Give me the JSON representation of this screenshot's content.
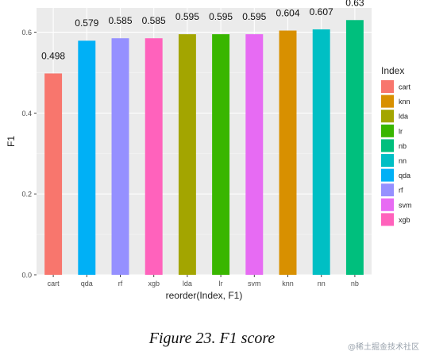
{
  "caption": "Figure 23. F1 score",
  "watermark": "@稀土掘金技术社区",
  "chart_data": {
    "type": "bar",
    "title": "",
    "xlabel": "reorder(Index, F1)",
    "ylabel": "F1",
    "ylim": [
      0,
      0.66
    ],
    "yticks": [
      0.0,
      0.2,
      0.4,
      0.6
    ],
    "ytick_labels": [
      "0.0",
      "0.2",
      "0.4",
      "0.6"
    ],
    "grid": true,
    "panel_background": "#ebebeb",
    "categories": [
      "cart",
      "qda",
      "rf",
      "xgb",
      "lda",
      "lr",
      "svm",
      "knn",
      "nn",
      "nb"
    ],
    "values": [
      0.498,
      0.579,
      0.585,
      0.585,
      0.595,
      0.595,
      0.595,
      0.604,
      0.607,
      0.63
    ],
    "value_labels": [
      "0.498",
      "0.579",
      "0.585",
      "0.585",
      "0.595",
      "0.595",
      "0.595",
      "0.604",
      "0.607",
      "0.63"
    ],
    "legend": {
      "title": "Index",
      "placement": "right",
      "items": [
        {
          "label": "cart",
          "color": "#F8766D"
        },
        {
          "label": "knn",
          "color": "#D89000"
        },
        {
          "label": "lda",
          "color": "#A3A500"
        },
        {
          "label": "lr",
          "color": "#39B600"
        },
        {
          "label": "nb",
          "color": "#00BF7D"
        },
        {
          "label": "nn",
          "color": "#00BFC4"
        },
        {
          "label": "qda",
          "color": "#00B0F6"
        },
        {
          "label": "rf",
          "color": "#9590FF"
        },
        {
          "label": "svm",
          "color": "#E76BF3"
        },
        {
          "label": "xgb",
          "color": "#FF62BC"
        }
      ]
    }
  }
}
